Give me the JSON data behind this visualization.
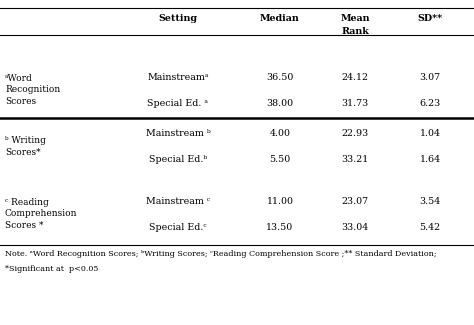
{
  "headers_row1": [
    "Setting",
    "Median",
    "Mean",
    "SD**"
  ],
  "headers_row2": [
    "",
    "",
    "Rank",
    ""
  ],
  "settings": [
    "Mainstreamᵃ",
    "Special Ed. ᵃ",
    "Mainstream ᵇ",
    "Special Ed.ᵇ",
    "Mainstream ᶜ",
    "Special Ed.ᶜ"
  ],
  "cat_labels": [
    "ᵃWord\nRecognition\nScores",
    "ᵇ Writing\nScores*",
    "ᶜ Reading\nComprehension\nScores *"
  ],
  "data": [
    [
      "36.50",
      "24.12",
      "3.07"
    ],
    [
      "38.00",
      "31.73",
      "6.23"
    ],
    [
      "4.00",
      "22.93",
      "1.04"
    ],
    [
      "5.50",
      "33.21",
      "1.64"
    ],
    [
      "11.00",
      "23.07",
      "3.54"
    ],
    [
      "13.50",
      "33.04",
      "5.42"
    ]
  ],
  "note_line1": "Note. ᵃWord Recognition Scores; ᵇWriting Scores; ᶜReading Comprehension Score ;** Standard Deviation;",
  "note_line2": "*Significant at  p<0.05",
  "bg_color": "#ffffff",
  "text_color": "#000000",
  "line_color": "#555555",
  "fs": 6.8,
  "fs_note": 5.8
}
